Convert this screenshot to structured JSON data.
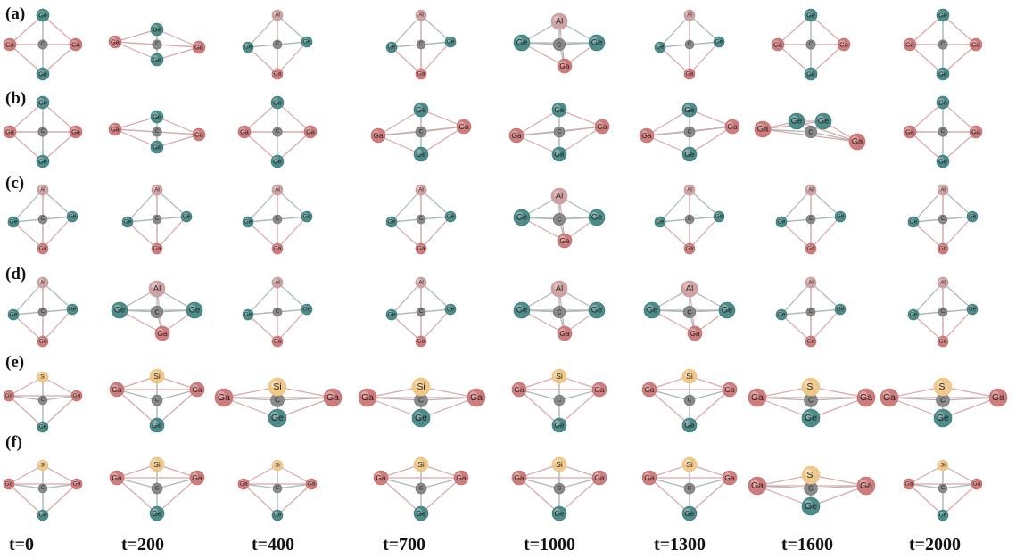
{
  "figure": {
    "row_labels": [
      "(a)",
      "(b)",
      "(c)",
      "(d)",
      "(e)",
      "(f)"
    ],
    "time_labels": [
      "t=0",
      "t=200",
      "t=400",
      "t=700",
      "t=1000",
      "t=1300",
      "t=1600",
      "t=2000"
    ]
  },
  "colors": {
    "Ge": "#4e8c8a",
    "Ga": "#cf7c7c",
    "Al": "#cfa3a3",
    "Si": "#f0c88a",
    "C": "#8a8a8a",
    "bond": "#aab8b8"
  },
  "chart_data": {
    "type": "structure-grid",
    "rows": [
      {
        "label": "(a)",
        "atoms": [
          "C",
          "Ge",
          "Ge",
          "Ga",
          "Ga",
          "Al"
        ]
      },
      {
        "label": "(b)",
        "atoms": [
          "C",
          "Ge",
          "Ge",
          "Ga",
          "Ga"
        ]
      },
      {
        "label": "(c)",
        "atoms": [
          "C",
          "Al",
          "Ge",
          "Ge",
          "Ga"
        ]
      },
      {
        "label": "(d)",
        "atoms": [
          "C",
          "Al",
          "Ge",
          "Ge",
          "Ga"
        ]
      },
      {
        "label": "(e)",
        "atoms": [
          "C",
          "Si",
          "Ga",
          "Ga",
          "Ge"
        ]
      },
      {
        "label": "(f)",
        "atoms": [
          "C",
          "Si",
          "Ga",
          "Ga",
          "Ge"
        ]
      }
    ],
    "time_steps": [
      "t=0",
      "t=200",
      "t=400",
      "t=700",
      "t=1000",
      "t=1300",
      "t=1600",
      "t=2000"
    ]
  }
}
